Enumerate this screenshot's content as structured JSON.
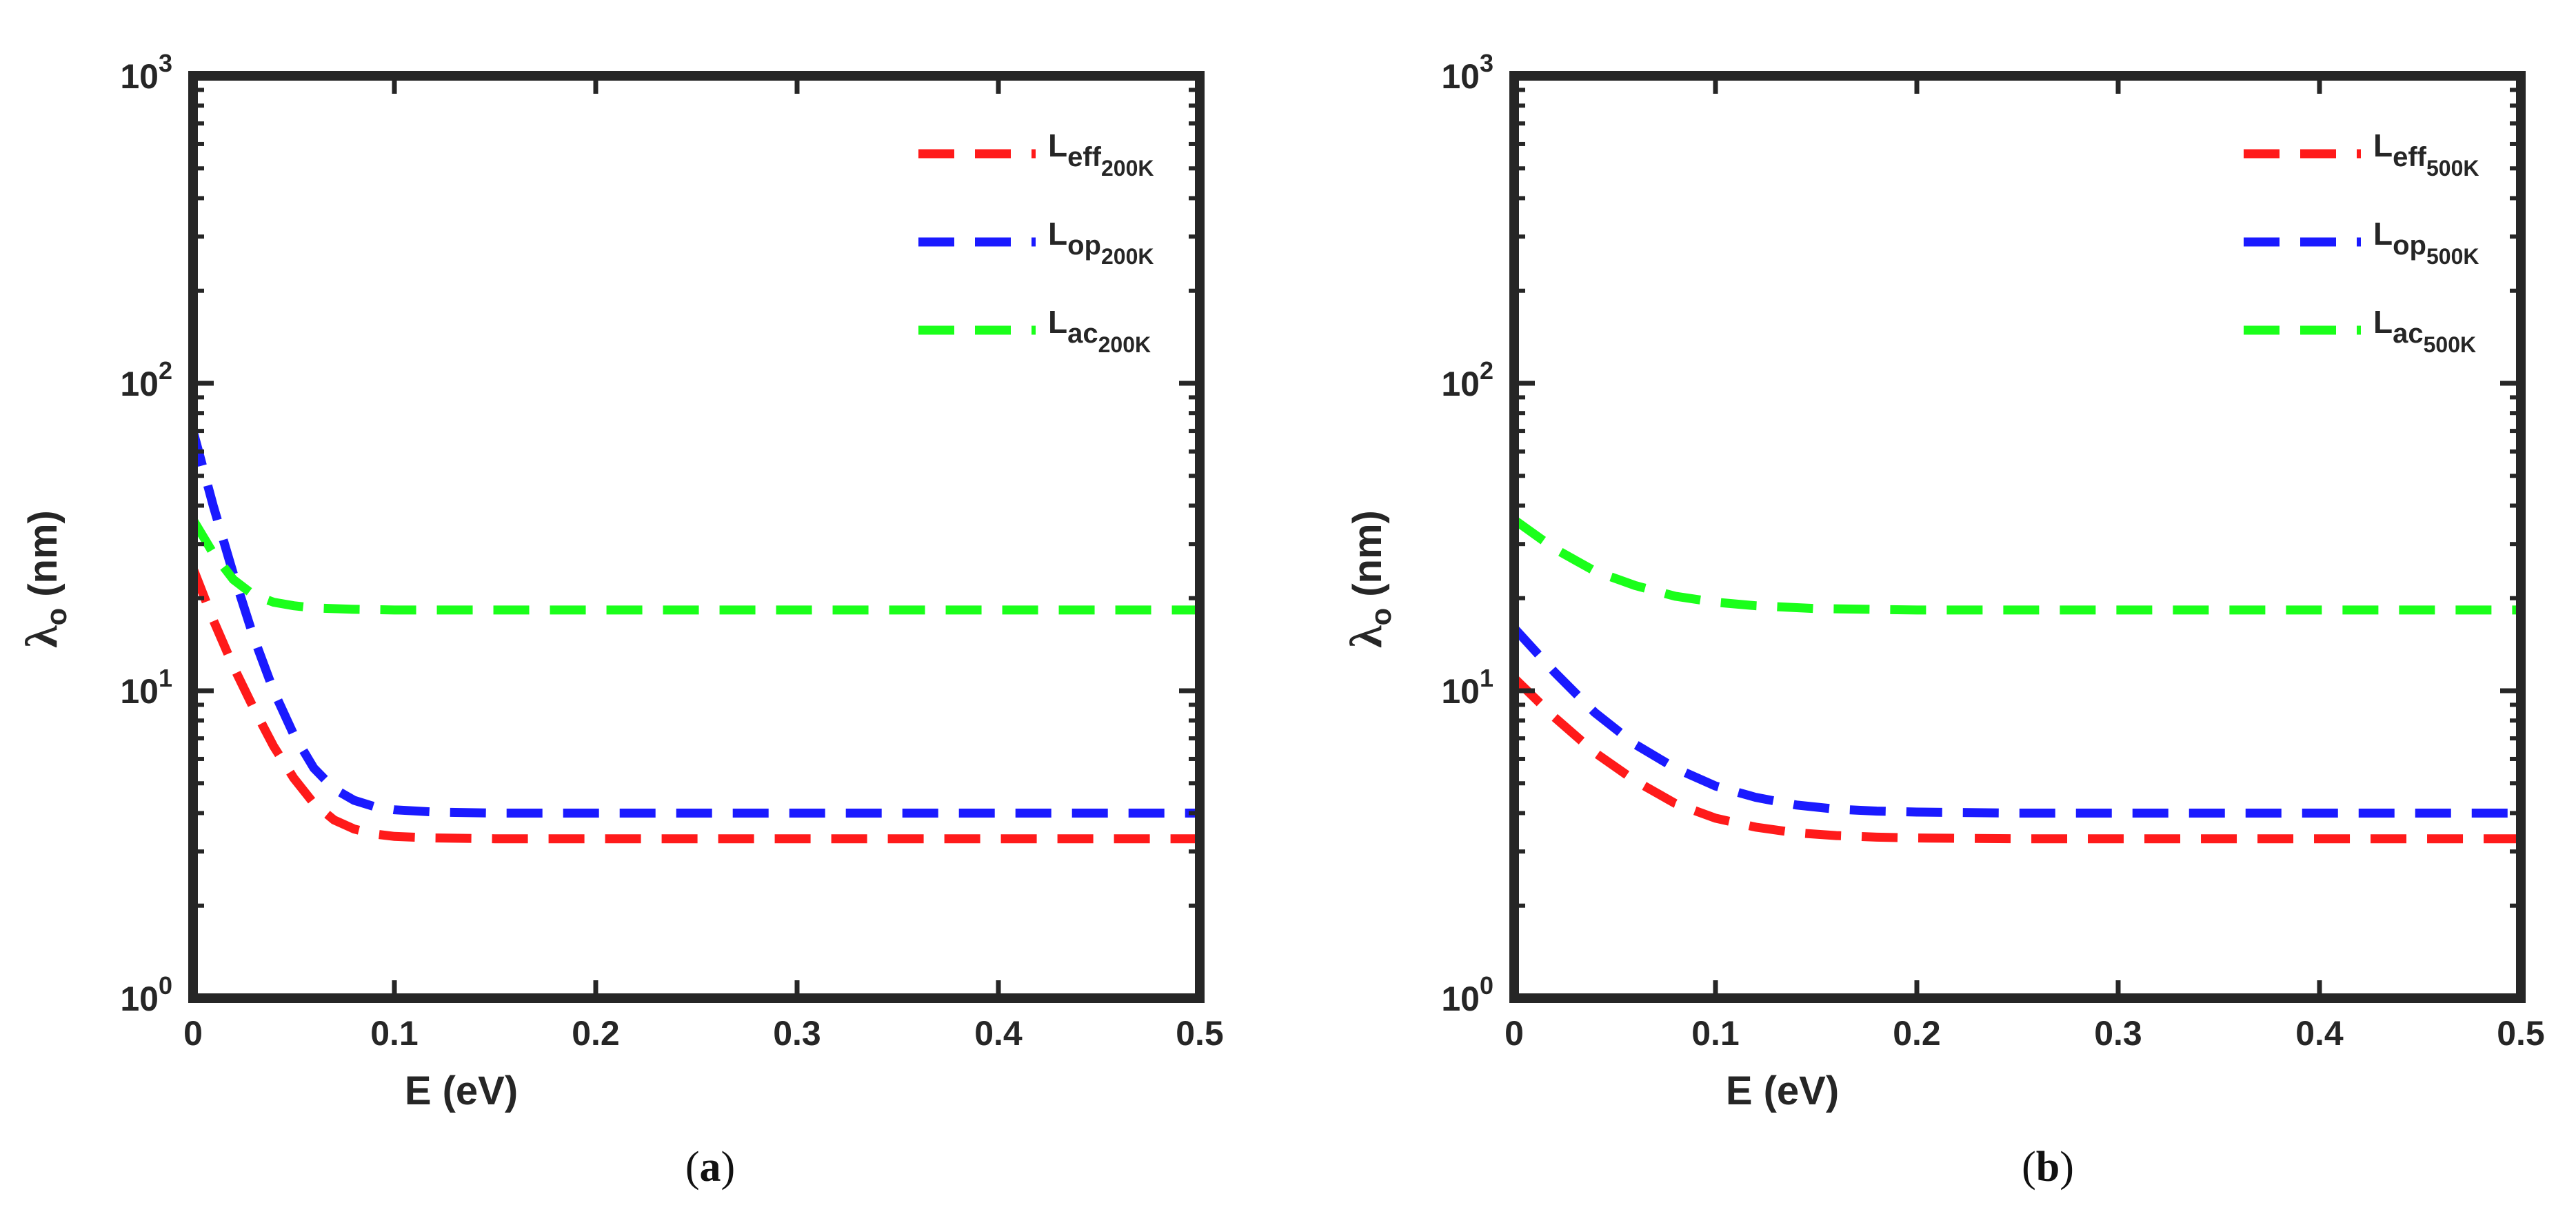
{
  "chart_data": [
    {
      "type": "line",
      "panel_label": "(a)",
      "panel_letter": "a",
      "xlabel": "E (eV)",
      "ylabel_symbol": "λ",
      "ylabel_subscript": "o",
      "ylabel_unit": "(nm)",
      "xscale": "linear",
      "yscale": "log",
      "xlim": [
        0,
        0.5
      ],
      "ylim": [
        1,
        1000
      ],
      "xticks": [
        {
          "value": 0,
          "label": "0"
        },
        {
          "value": 0.1,
          "label": "0.1"
        },
        {
          "value": 0.2,
          "label": "0.2"
        },
        {
          "value": 0.3,
          "label": "0.3"
        },
        {
          "value": 0.4,
          "label": "0.4"
        },
        {
          "value": 0.5,
          "label": "0.5"
        }
      ],
      "yticks": [
        {
          "value": 1,
          "base": "10",
          "exp": "0"
        },
        {
          "value": 10,
          "base": "10",
          "exp": "1"
        },
        {
          "value": 100,
          "base": "10",
          "exp": "2"
        },
        {
          "value": 1000,
          "base": "10",
          "exp": "3"
        }
      ],
      "legend_position": "top-right",
      "grid": false,
      "series": [
        {
          "name": "L_eff_200K",
          "label_main": "L",
          "label_sub": "eff",
          "label_subsub": "200K",
          "color": "#ff1a1a",
          "x": [
            0,
            0.01,
            0.02,
            0.03,
            0.04,
            0.05,
            0.06,
            0.07,
            0.08,
            0.09,
            0.1,
            0.12,
            0.15,
            0.2,
            0.3,
            0.4,
            0.5
          ],
          "y": [
            25,
            17,
            12,
            8.8,
            6.6,
            5.2,
            4.3,
            3.8,
            3.55,
            3.42,
            3.36,
            3.32,
            3.3,
            3.3,
            3.3,
            3.3,
            3.3
          ]
        },
        {
          "name": "L_op_200K",
          "label_main": "L",
          "label_sub": "op",
          "label_subsub": "200K",
          "color": "#1a1aff",
          "x": [
            0,
            0.01,
            0.02,
            0.03,
            0.04,
            0.05,
            0.06,
            0.07,
            0.08,
            0.09,
            0.1,
            0.12,
            0.15,
            0.2,
            0.3,
            0.4,
            0.5
          ],
          "y": [
            70,
            40,
            24,
            15,
            10,
            7.2,
            5.6,
            4.8,
            4.4,
            4.2,
            4.1,
            4.03,
            4.0,
            4.0,
            4.0,
            4.0,
            4.0
          ]
        },
        {
          "name": "L_ac_200K",
          "label_main": "L",
          "label_sub": "ac",
          "label_subsub": "200K",
          "color": "#1aff1a",
          "x": [
            0,
            0.01,
            0.02,
            0.03,
            0.04,
            0.05,
            0.06,
            0.08,
            0.1,
            0.15,
            0.2,
            0.3,
            0.4,
            0.5
          ],
          "y": [
            36,
            28,
            23,
            20.5,
            19.4,
            18.9,
            18.6,
            18.4,
            18.3,
            18.3,
            18.3,
            18.3,
            18.3,
            18.3
          ]
        }
      ]
    },
    {
      "type": "line",
      "panel_label": "(b)",
      "panel_letter": "b",
      "xlabel": "E (eV)",
      "ylabel_symbol": "λ",
      "ylabel_subscript": "o",
      "ylabel_unit": "(nm)",
      "xscale": "linear",
      "yscale": "log",
      "xlim": [
        0,
        0.5
      ],
      "ylim": [
        1,
        1000
      ],
      "xticks": [
        {
          "value": 0,
          "label": "0"
        },
        {
          "value": 0.1,
          "label": "0.1"
        },
        {
          "value": 0.2,
          "label": "0.2"
        },
        {
          "value": 0.3,
          "label": "0.3"
        },
        {
          "value": 0.4,
          "label": "0.4"
        },
        {
          "value": 0.5,
          "label": "0.5"
        }
      ],
      "yticks": [
        {
          "value": 1,
          "base": "10",
          "exp": "0"
        },
        {
          "value": 10,
          "base": "10",
          "exp": "1"
        },
        {
          "value": 100,
          "base": "10",
          "exp": "2"
        },
        {
          "value": 1000,
          "base": "10",
          "exp": "3"
        }
      ],
      "legend_position": "top-right",
      "grid": false,
      "series": [
        {
          "name": "L_eff_500K",
          "label_main": "L",
          "label_sub": "eff",
          "label_subsub": "500K",
          "color": "#ff1a1a",
          "x": [
            0,
            0.02,
            0.04,
            0.06,
            0.08,
            0.1,
            0.12,
            0.14,
            0.16,
            0.18,
            0.2,
            0.25,
            0.3,
            0.4,
            0.5
          ],
          "y": [
            11,
            8.2,
            6.3,
            5.1,
            4.3,
            3.85,
            3.6,
            3.45,
            3.38,
            3.34,
            3.32,
            3.3,
            3.3,
            3.3,
            3.3
          ]
        },
        {
          "name": "L_op_500K",
          "label_main": "L",
          "label_sub": "op",
          "label_subsub": "500K",
          "color": "#1a1aff",
          "x": [
            0,
            0.02,
            0.04,
            0.06,
            0.08,
            0.1,
            0.12,
            0.14,
            0.16,
            0.18,
            0.2,
            0.25,
            0.3,
            0.4,
            0.5
          ],
          "y": [
            16,
            11.5,
            8.5,
            6.7,
            5.6,
            4.9,
            4.5,
            4.25,
            4.12,
            4.06,
            4.03,
            4.0,
            4.0,
            4.0,
            4.0
          ]
        },
        {
          "name": "L_ac_500K",
          "label_main": "L",
          "label_sub": "ac",
          "label_subsub": "500K",
          "color": "#1aff1a",
          "x": [
            0,
            0.02,
            0.04,
            0.06,
            0.08,
            0.1,
            0.12,
            0.15,
            0.2,
            0.25,
            0.3,
            0.4,
            0.5
          ],
          "y": [
            36,
            29,
            24.5,
            22,
            20.3,
            19.4,
            18.9,
            18.5,
            18.3,
            18.3,
            18.3,
            18.3,
            18.3
          ]
        }
      ]
    }
  ]
}
